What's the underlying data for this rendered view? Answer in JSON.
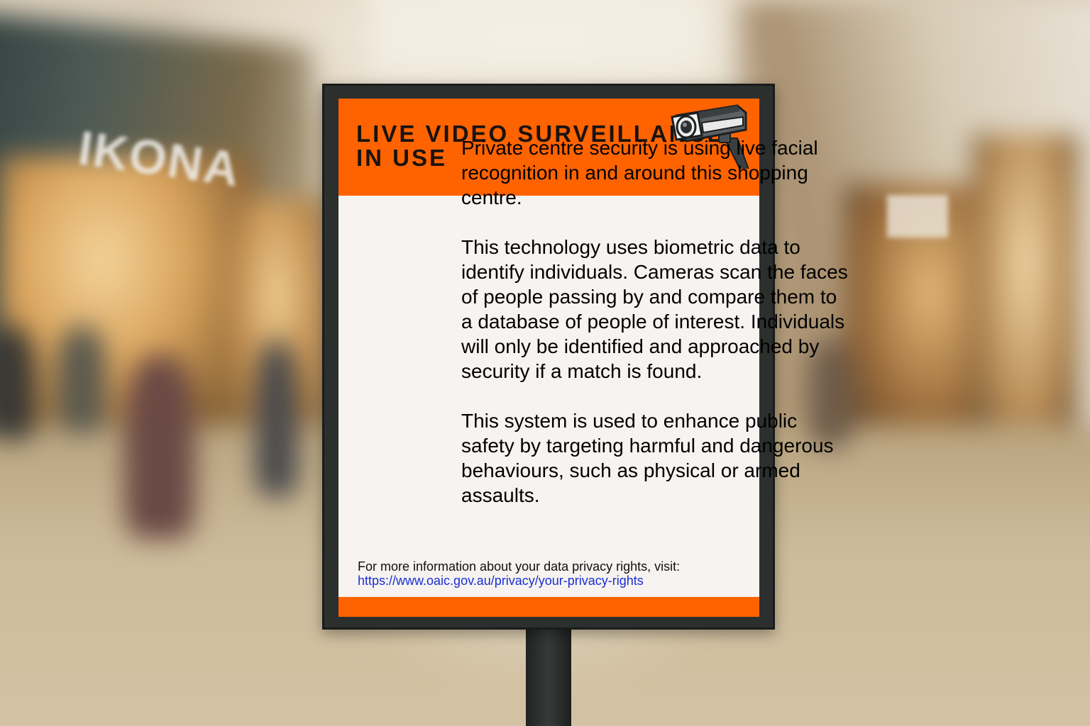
{
  "sign": {
    "title": "LIVE VIDEO SURVEILLANCE IN USE",
    "paragraphs": [
      "Private centre security is using live facial recognition in and around this shopping centre.",
      "This technology uses biometric data to identify individuals. Cameras scan the faces of people passing by and compare them to a database of people of interest. Individuals will only be identified and approached by security if a match is found.",
      "This system is used to enhance public safety by targeting harmful and dangerous behaviours, such as physical or armed assaults."
    ],
    "footer_text": "For more information about your data privacy rights, visit:",
    "footer_link": "https://www.oaic.gov.au/privacy/your-privacy-rights",
    "icon": "cctv-camera-icon"
  },
  "background": {
    "store_sign_left": "IKONA"
  },
  "colors": {
    "accent_orange": "#ff6300",
    "sign_face": "#f6f3f0",
    "frame": "#2b2f2d",
    "link": "#1a2fd6"
  }
}
